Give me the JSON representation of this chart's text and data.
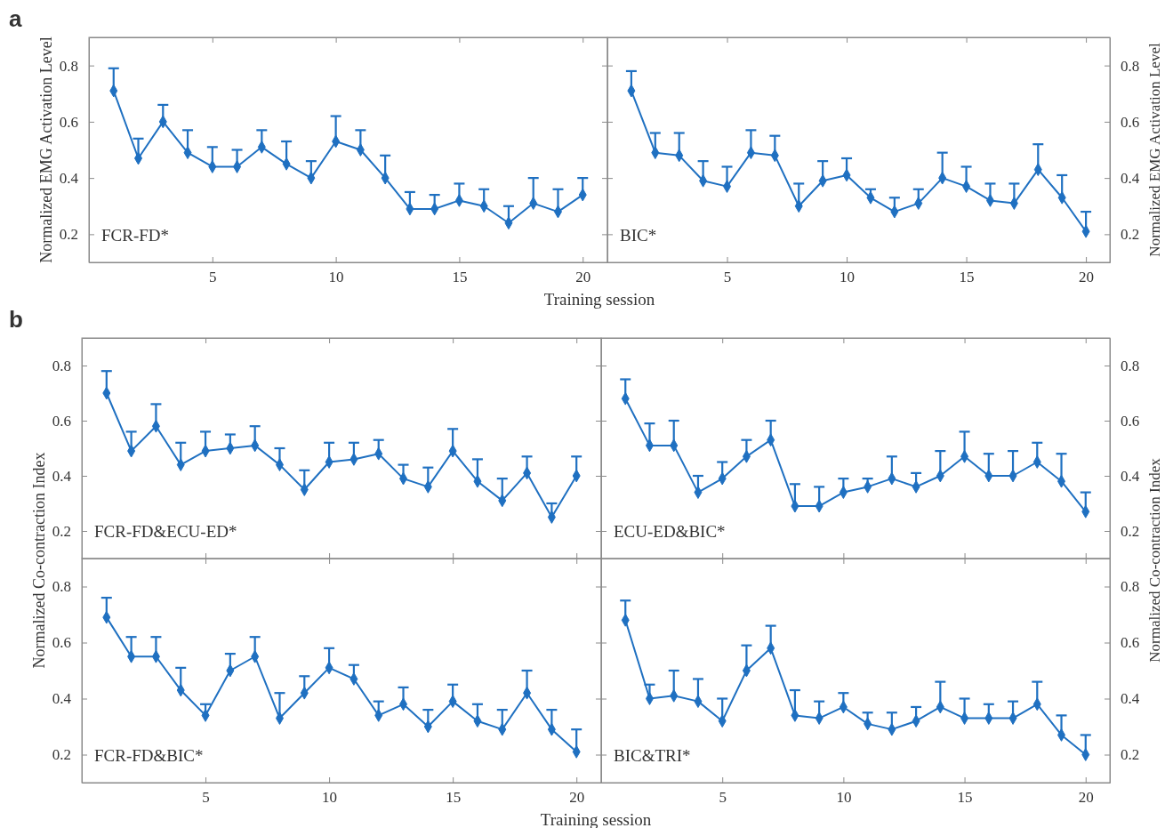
{
  "chart_data": [
    {
      "type": "line",
      "title": "FCR-FD*",
      "annotations": [
        "a"
      ],
      "xlabel": "Training session",
      "ylabel": "Normalized EMG Activation Level",
      "x": [
        1,
        2,
        3,
        4,
        5,
        6,
        7,
        8,
        9,
        10,
        11,
        12,
        13,
        14,
        15,
        16,
        17,
        18,
        19,
        20
      ],
      "xlim": [
        0,
        21
      ],
      "xticks": [
        5,
        10,
        15,
        20
      ],
      "ylim": [
        0.1,
        0.9
      ],
      "yticks": [
        0.2,
        0.4,
        0.6,
        0.8
      ],
      "marker": "diamond",
      "series": [
        {
          "color": "#1f70c1",
          "values": [
            0.71,
            0.47,
            0.6,
            0.49,
            0.44,
            0.44,
            0.51,
            0.45,
            0.4,
            0.53,
            0.5,
            0.4,
            0.29,
            0.29,
            0.32,
            0.3,
            0.24,
            0.31,
            0.28,
            0.34
          ],
          "errors": [
            [
              0.71,
              0.79
            ],
            [
              0.47,
              0.54
            ],
            [
              0.6,
              0.66
            ],
            [
              0.49,
              0.57
            ],
            [
              0.44,
              0.51
            ],
            [
              0.44,
              0.5
            ],
            [
              0.51,
              0.57
            ],
            [
              0.45,
              0.53
            ],
            [
              0.4,
              0.46
            ],
            [
              0.53,
              0.62
            ],
            [
              0.5,
              0.57
            ],
            [
              0.4,
              0.48
            ],
            [
              0.29,
              0.35
            ],
            [
              0.29,
              0.34
            ],
            [
              0.32,
              0.38
            ],
            [
              0.3,
              0.36
            ],
            [
              0.24,
              0.3
            ],
            [
              0.31,
              0.4
            ],
            [
              0.28,
              0.36
            ],
            [
              0.34,
              0.4
            ]
          ]
        }
      ]
    },
    {
      "type": "line",
      "title": "BIC*",
      "y2label": "Normalized EMG Activation Level",
      "x": [
        1,
        2,
        3,
        4,
        5,
        6,
        7,
        8,
        9,
        10,
        11,
        12,
        13,
        14,
        15,
        16,
        17,
        18,
        19,
        20
      ],
      "xlim": [
        0,
        21
      ],
      "xticks": [
        5,
        10,
        15,
        20
      ],
      "y2lim": [
        0.1,
        0.9
      ],
      "y2ticks": [
        0.2,
        0.4,
        0.6,
        0.8
      ],
      "marker": "diamond",
      "series": [
        {
          "color": "#1f70c1",
          "axis": "y2",
          "values": [
            0.71,
            0.49,
            0.48,
            0.39,
            0.37,
            0.49,
            0.48,
            0.3,
            0.39,
            0.41,
            0.33,
            0.28,
            0.31,
            0.4,
            0.37,
            0.32,
            0.31,
            0.43,
            0.33,
            0.21
          ],
          "errors": [
            [
              0.71,
              0.78
            ],
            [
              0.49,
              0.56
            ],
            [
              0.48,
              0.56
            ],
            [
              0.39,
              0.46
            ],
            [
              0.37,
              0.44
            ],
            [
              0.49,
              0.57
            ],
            [
              0.48,
              0.55
            ],
            [
              0.3,
              0.38
            ],
            [
              0.39,
              0.46
            ],
            [
              0.41,
              0.47
            ],
            [
              0.33,
              0.36
            ],
            [
              0.28,
              0.33
            ],
            [
              0.31,
              0.36
            ],
            [
              0.4,
              0.49
            ],
            [
              0.37,
              0.44
            ],
            [
              0.32,
              0.38
            ],
            [
              0.31,
              0.38
            ],
            [
              0.43,
              0.52
            ],
            [
              0.33,
              0.41
            ],
            [
              0.21,
              0.28
            ]
          ]
        }
      ]
    },
    {
      "type": "line",
      "title": "FCR-FD&ECU-ED*",
      "annotations": [
        "b"
      ],
      "x": [
        1,
        2,
        3,
        4,
        5,
        6,
        7,
        8,
        9,
        10,
        11,
        12,
        13,
        14,
        15,
        16,
        17,
        18,
        19,
        20
      ],
      "xlim": [
        0,
        21
      ],
      "xticks": [
        5,
        10,
        15,
        20
      ],
      "ylim": [
        0.1,
        0.9
      ],
      "yticks": [
        0.2,
        0.4,
        0.6,
        0.8
      ],
      "tick_labels": "y",
      "marker": "diamond",
      "series": [
        {
          "color": "#1f70c1",
          "values": [
            0.7,
            0.49,
            0.58,
            0.44,
            0.49,
            0.5,
            0.51,
            0.44,
            0.35,
            0.45,
            0.46,
            0.48,
            0.39,
            0.36,
            0.49,
            0.38,
            0.31,
            0.41,
            0.25,
            0.4
          ],
          "errors": [
            [
              0.7,
              0.78
            ],
            [
              0.49,
              0.56
            ],
            [
              0.58,
              0.66
            ],
            [
              0.44,
              0.52
            ],
            [
              0.49,
              0.56
            ],
            [
              0.5,
              0.55
            ],
            [
              0.51,
              0.58
            ],
            [
              0.44,
              0.5
            ],
            [
              0.35,
              0.42
            ],
            [
              0.45,
              0.52
            ],
            [
              0.46,
              0.52
            ],
            [
              0.48,
              0.53
            ],
            [
              0.39,
              0.44
            ],
            [
              0.36,
              0.43
            ],
            [
              0.49,
              0.57
            ],
            [
              0.38,
              0.46
            ],
            [
              0.31,
              0.39
            ],
            [
              0.41,
              0.47
            ],
            [
              0.25,
              0.3
            ],
            [
              0.4,
              0.47
            ]
          ]
        }
      ]
    },
    {
      "type": "line",
      "title": "ECU-ED&BIC*",
      "x": [
        1,
        2,
        3,
        4,
        5,
        6,
        7,
        8,
        9,
        10,
        11,
        12,
        13,
        14,
        15,
        16,
        17,
        18,
        19,
        20
      ],
      "xlim": [
        0,
        21
      ],
      "xticks": [
        5,
        10,
        15,
        20
      ],
      "y2lim": [
        0.1,
        0.9
      ],
      "y2ticks": [
        0.2,
        0.4,
        0.6,
        0.8
      ],
      "tick_labels": "y",
      "marker": "diamond",
      "series": [
        {
          "color": "#1f70c1",
          "axis": "y2",
          "values": [
            0.68,
            0.51,
            0.51,
            0.34,
            0.39,
            0.47,
            0.53,
            0.29,
            0.29,
            0.34,
            0.36,
            0.39,
            0.36,
            0.4,
            0.47,
            0.4,
            0.4,
            0.45,
            0.38,
            0.27
          ],
          "errors": [
            [
              0.68,
              0.75
            ],
            [
              0.51,
              0.59
            ],
            [
              0.51,
              0.6
            ],
            [
              0.34,
              0.4
            ],
            [
              0.39,
              0.45
            ],
            [
              0.47,
              0.53
            ],
            [
              0.53,
              0.6
            ],
            [
              0.29,
              0.37
            ],
            [
              0.29,
              0.36
            ],
            [
              0.34,
              0.39
            ],
            [
              0.36,
              0.39
            ],
            [
              0.39,
              0.47
            ],
            [
              0.36,
              0.41
            ],
            [
              0.4,
              0.49
            ],
            [
              0.47,
              0.56
            ],
            [
              0.4,
              0.48
            ],
            [
              0.4,
              0.49
            ],
            [
              0.45,
              0.52
            ],
            [
              0.38,
              0.48
            ],
            [
              0.27,
              0.34
            ]
          ]
        }
      ]
    },
    {
      "type": "line",
      "title": "FCR-FD&BIC*",
      "xlabel": "Training session",
      "ylabel": "Normalized Co-contraction Index",
      "x": [
        1,
        2,
        3,
        4,
        5,
        6,
        7,
        8,
        9,
        10,
        11,
        12,
        13,
        14,
        15,
        16,
        17,
        18,
        19,
        20
      ],
      "xlim": [
        0,
        21
      ],
      "xticks": [
        5,
        10,
        15,
        20
      ],
      "ylim": [
        0.1,
        0.9
      ],
      "yticks": [
        0.2,
        0.4,
        0.6,
        0.8
      ],
      "marker": "diamond",
      "series": [
        {
          "color": "#1f70c1",
          "values": [
            0.69,
            0.55,
            0.55,
            0.43,
            0.34,
            0.5,
            0.55,
            0.33,
            0.42,
            0.51,
            0.47,
            0.34,
            0.38,
            0.3,
            0.39,
            0.32,
            0.29,
            0.42,
            0.29,
            0.21
          ],
          "errors": [
            [
              0.69,
              0.76
            ],
            [
              0.55,
              0.62
            ],
            [
              0.55,
              0.62
            ],
            [
              0.43,
              0.51
            ],
            [
              0.34,
              0.38
            ],
            [
              0.5,
              0.56
            ],
            [
              0.55,
              0.62
            ],
            [
              0.33,
              0.42
            ],
            [
              0.42,
              0.48
            ],
            [
              0.51,
              0.58
            ],
            [
              0.47,
              0.52
            ],
            [
              0.34,
              0.39
            ],
            [
              0.38,
              0.44
            ],
            [
              0.3,
              0.36
            ],
            [
              0.39,
              0.45
            ],
            [
              0.32,
              0.38
            ],
            [
              0.29,
              0.36
            ],
            [
              0.42,
              0.5
            ],
            [
              0.29,
              0.36
            ],
            [
              0.21,
              0.29
            ]
          ]
        }
      ]
    },
    {
      "type": "line",
      "title": "BIC&TRI*",
      "y2label": "Normalized Co-contraction Index",
      "x": [
        1,
        2,
        3,
        4,
        5,
        6,
        7,
        8,
        9,
        10,
        11,
        12,
        13,
        14,
        15,
        16,
        17,
        18,
        19,
        20
      ],
      "xlim": [
        0,
        21
      ],
      "xticks": [
        5,
        10,
        15,
        20
      ],
      "y2lim": [
        0.1,
        0.9
      ],
      "y2ticks": [
        0.2,
        0.4,
        0.6,
        0.8
      ],
      "marker": "diamond",
      "series": [
        {
          "color": "#1f70c1",
          "axis": "y2",
          "values": [
            0.68,
            0.4,
            0.41,
            0.39,
            0.32,
            0.5,
            0.58,
            0.34,
            0.33,
            0.37,
            0.31,
            0.29,
            0.32,
            0.37,
            0.33,
            0.33,
            0.33,
            0.38,
            0.27,
            0.2
          ],
          "errors": [
            [
              0.68,
              0.75
            ],
            [
              0.4,
              0.45
            ],
            [
              0.41,
              0.5
            ],
            [
              0.39,
              0.47
            ],
            [
              0.32,
              0.4
            ],
            [
              0.5,
              0.59
            ],
            [
              0.58,
              0.66
            ],
            [
              0.34,
              0.43
            ],
            [
              0.33,
              0.39
            ],
            [
              0.37,
              0.42
            ],
            [
              0.31,
              0.35
            ],
            [
              0.29,
              0.35
            ],
            [
              0.32,
              0.37
            ],
            [
              0.37,
              0.46
            ],
            [
              0.33,
              0.4
            ],
            [
              0.33,
              0.38
            ],
            [
              0.33,
              0.39
            ],
            [
              0.38,
              0.46
            ],
            [
              0.27,
              0.34
            ],
            [
              0.2,
              0.27
            ]
          ]
        }
      ]
    }
  ]
}
